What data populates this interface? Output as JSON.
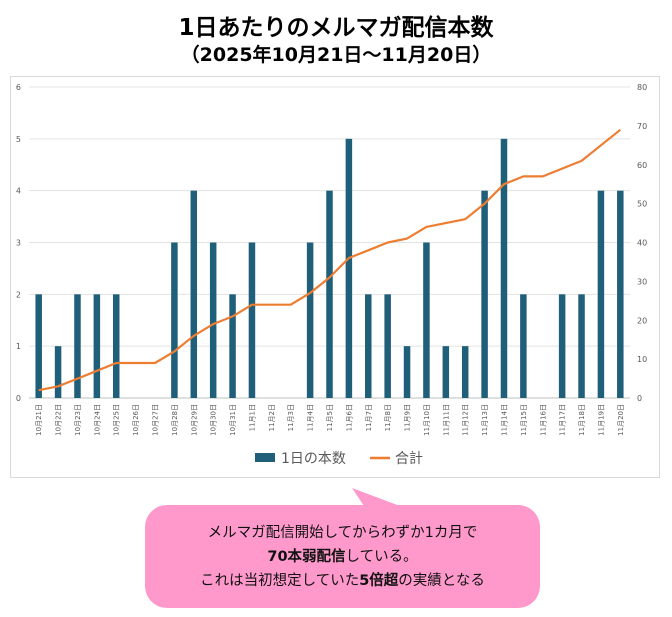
{
  "title": "1日あたりのメルマガ配信本数",
  "subtitle": "（2025年10月21日～11月20日）",
  "chart_data": {
    "type": "bar",
    "categories": [
      "10月21日",
      "10月22日",
      "10月23日",
      "10月24日",
      "10月25日",
      "10月26日",
      "10月27日",
      "10月28日",
      "10月29日",
      "10月30日",
      "10月31日",
      "11月1日",
      "11月2日",
      "11月3日",
      "11月4日",
      "11月5日",
      "11月6日",
      "11月7日",
      "11月8日",
      "11月9日",
      "11月10日",
      "11月11日",
      "11月12日",
      "11月13日",
      "11月14日",
      "11月15日",
      "11月16日",
      "11月17日",
      "11月18日",
      "11月19日",
      "11月20日"
    ],
    "series": [
      {
        "name": "1日の本数",
        "type": "bar",
        "axis": "left",
        "color": "#1f5f7a",
        "values": [
          2,
          1,
          2,
          2,
          2,
          0,
          0,
          3,
          4,
          3,
          2,
          3,
          0,
          0,
          3,
          4,
          5,
          2,
          2,
          1,
          3,
          1,
          1,
          4,
          5,
          2,
          0,
          2,
          2,
          4,
          4
        ]
      },
      {
        "name": "合計",
        "type": "line",
        "axis": "right",
        "color": "#ed7d31",
        "values": [
          2,
          3,
          5,
          7,
          9,
          9,
          9,
          12,
          16,
          19,
          21,
          24,
          24,
          24,
          27,
          31,
          36,
          38,
          40,
          41,
          44,
          45,
          46,
          50,
          55,
          57,
          57,
          59,
          61,
          65,
          69
        ]
      }
    ],
    "ylim_left": [
      0,
      6
    ],
    "yticks_left": [
      0,
      1,
      2,
      3,
      4,
      5,
      6
    ],
    "ylim_right": [
      0,
      80
    ],
    "yticks_right": [
      0,
      10,
      20,
      30,
      40,
      50,
      60,
      70,
      80
    ],
    "grid": true,
    "legend": "bottom"
  },
  "callout": {
    "line1": "メルマガ配信開始してからわずか1カ月で",
    "line2_bold": "70本弱配信",
    "line2_rest": "している。",
    "line3_a": "これは当初想定していた",
    "line3_bold": "5倍超",
    "line3_b": "の実績となる",
    "color": "#ff99cc"
  }
}
